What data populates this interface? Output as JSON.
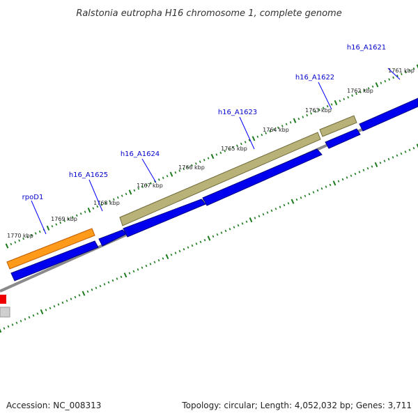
{
  "title": "Ralstonia eutropha H16 chromosome 1, complete genome",
  "footer": {
    "accession": "Accession: NC_008313",
    "summary": "Topology: circular; Length: 4,052,032 bp; Genes: 3,711"
  },
  "colors": {
    "cds_blue": "#0000ee",
    "rpod_orange": "#ff8c00",
    "tan_feature": "#b0aa6e",
    "backbone_gray": "#808080",
    "tick_green": "#1a7a1a",
    "gene_label_blue": "#0000cc",
    "leader_line_blue": "#0000ff",
    "left_red": "#ee0000"
  },
  "kbp_ticks": [
    "1761 kbp",
    "1762 kbp",
    "1763 kbp",
    "1764 kbp",
    "1765 kbp",
    "1766 kbp",
    "1767 kbp",
    "1768 kbp",
    "1769 kbp",
    "1770 kbp"
  ],
  "gene_labels": [
    "h16_A1621",
    "h16_A1622",
    "h16_A1623",
    "h16_A1624",
    "h16_A1625",
    "rpoD1"
  ]
}
